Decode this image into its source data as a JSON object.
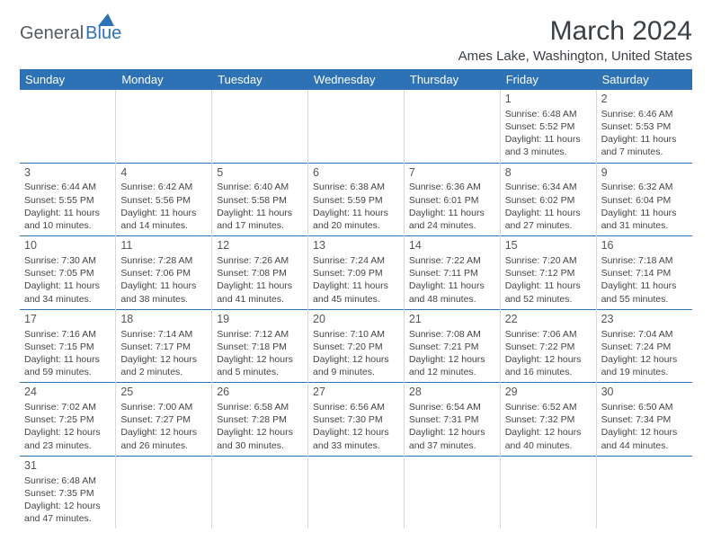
{
  "logo": {
    "part1": "General",
    "part2": "Blue"
  },
  "title": "March 2024",
  "subtitle": "Ames Lake, Washington, United States",
  "colors": {
    "header_bg": "#2d72b5",
    "header_text": "#ffffff",
    "row_divider": "#2d72b5",
    "cell_divider": "#d9d9d9",
    "body_text": "#444444",
    "title_text": "#3a3f44",
    "logo_gray": "#555a61",
    "logo_blue": "#2d72b5",
    "page_bg": "#ffffff"
  },
  "fonts": {
    "title_pt": 30,
    "subtitle_pt": 15,
    "header_pt": 13,
    "daynum_pt": 12.5,
    "body_pt": 10.5
  },
  "day_headers": [
    "Sunday",
    "Monday",
    "Tuesday",
    "Wednesday",
    "Thursday",
    "Friday",
    "Saturday"
  ],
  "weeks": [
    [
      null,
      null,
      null,
      null,
      null,
      {
        "n": "1",
        "sr": "Sunrise: 6:48 AM",
        "ss": "Sunset: 5:52 PM",
        "dl1": "Daylight: 11 hours",
        "dl2": "and 3 minutes."
      },
      {
        "n": "2",
        "sr": "Sunrise: 6:46 AM",
        "ss": "Sunset: 5:53 PM",
        "dl1": "Daylight: 11 hours",
        "dl2": "and 7 minutes."
      }
    ],
    [
      {
        "n": "3",
        "sr": "Sunrise: 6:44 AM",
        "ss": "Sunset: 5:55 PM",
        "dl1": "Daylight: 11 hours",
        "dl2": "and 10 minutes."
      },
      {
        "n": "4",
        "sr": "Sunrise: 6:42 AM",
        "ss": "Sunset: 5:56 PM",
        "dl1": "Daylight: 11 hours",
        "dl2": "and 14 minutes."
      },
      {
        "n": "5",
        "sr": "Sunrise: 6:40 AM",
        "ss": "Sunset: 5:58 PM",
        "dl1": "Daylight: 11 hours",
        "dl2": "and 17 minutes."
      },
      {
        "n": "6",
        "sr": "Sunrise: 6:38 AM",
        "ss": "Sunset: 5:59 PM",
        "dl1": "Daylight: 11 hours",
        "dl2": "and 20 minutes."
      },
      {
        "n": "7",
        "sr": "Sunrise: 6:36 AM",
        "ss": "Sunset: 6:01 PM",
        "dl1": "Daylight: 11 hours",
        "dl2": "and 24 minutes."
      },
      {
        "n": "8",
        "sr": "Sunrise: 6:34 AM",
        "ss": "Sunset: 6:02 PM",
        "dl1": "Daylight: 11 hours",
        "dl2": "and 27 minutes."
      },
      {
        "n": "9",
        "sr": "Sunrise: 6:32 AM",
        "ss": "Sunset: 6:04 PM",
        "dl1": "Daylight: 11 hours",
        "dl2": "and 31 minutes."
      }
    ],
    [
      {
        "n": "10",
        "sr": "Sunrise: 7:30 AM",
        "ss": "Sunset: 7:05 PM",
        "dl1": "Daylight: 11 hours",
        "dl2": "and 34 minutes."
      },
      {
        "n": "11",
        "sr": "Sunrise: 7:28 AM",
        "ss": "Sunset: 7:06 PM",
        "dl1": "Daylight: 11 hours",
        "dl2": "and 38 minutes."
      },
      {
        "n": "12",
        "sr": "Sunrise: 7:26 AM",
        "ss": "Sunset: 7:08 PM",
        "dl1": "Daylight: 11 hours",
        "dl2": "and 41 minutes."
      },
      {
        "n": "13",
        "sr": "Sunrise: 7:24 AM",
        "ss": "Sunset: 7:09 PM",
        "dl1": "Daylight: 11 hours",
        "dl2": "and 45 minutes."
      },
      {
        "n": "14",
        "sr": "Sunrise: 7:22 AM",
        "ss": "Sunset: 7:11 PM",
        "dl1": "Daylight: 11 hours",
        "dl2": "and 48 minutes."
      },
      {
        "n": "15",
        "sr": "Sunrise: 7:20 AM",
        "ss": "Sunset: 7:12 PM",
        "dl1": "Daylight: 11 hours",
        "dl2": "and 52 minutes."
      },
      {
        "n": "16",
        "sr": "Sunrise: 7:18 AM",
        "ss": "Sunset: 7:14 PM",
        "dl1": "Daylight: 11 hours",
        "dl2": "and 55 minutes."
      }
    ],
    [
      {
        "n": "17",
        "sr": "Sunrise: 7:16 AM",
        "ss": "Sunset: 7:15 PM",
        "dl1": "Daylight: 11 hours",
        "dl2": "and 59 minutes."
      },
      {
        "n": "18",
        "sr": "Sunrise: 7:14 AM",
        "ss": "Sunset: 7:17 PM",
        "dl1": "Daylight: 12 hours",
        "dl2": "and 2 minutes."
      },
      {
        "n": "19",
        "sr": "Sunrise: 7:12 AM",
        "ss": "Sunset: 7:18 PM",
        "dl1": "Daylight: 12 hours",
        "dl2": "and 5 minutes."
      },
      {
        "n": "20",
        "sr": "Sunrise: 7:10 AM",
        "ss": "Sunset: 7:20 PM",
        "dl1": "Daylight: 12 hours",
        "dl2": "and 9 minutes."
      },
      {
        "n": "21",
        "sr": "Sunrise: 7:08 AM",
        "ss": "Sunset: 7:21 PM",
        "dl1": "Daylight: 12 hours",
        "dl2": "and 12 minutes."
      },
      {
        "n": "22",
        "sr": "Sunrise: 7:06 AM",
        "ss": "Sunset: 7:22 PM",
        "dl1": "Daylight: 12 hours",
        "dl2": "and 16 minutes."
      },
      {
        "n": "23",
        "sr": "Sunrise: 7:04 AM",
        "ss": "Sunset: 7:24 PM",
        "dl1": "Daylight: 12 hours",
        "dl2": "and 19 minutes."
      }
    ],
    [
      {
        "n": "24",
        "sr": "Sunrise: 7:02 AM",
        "ss": "Sunset: 7:25 PM",
        "dl1": "Daylight: 12 hours",
        "dl2": "and 23 minutes."
      },
      {
        "n": "25",
        "sr": "Sunrise: 7:00 AM",
        "ss": "Sunset: 7:27 PM",
        "dl1": "Daylight: 12 hours",
        "dl2": "and 26 minutes."
      },
      {
        "n": "26",
        "sr": "Sunrise: 6:58 AM",
        "ss": "Sunset: 7:28 PM",
        "dl1": "Daylight: 12 hours",
        "dl2": "and 30 minutes."
      },
      {
        "n": "27",
        "sr": "Sunrise: 6:56 AM",
        "ss": "Sunset: 7:30 PM",
        "dl1": "Daylight: 12 hours",
        "dl2": "and 33 minutes."
      },
      {
        "n": "28",
        "sr": "Sunrise: 6:54 AM",
        "ss": "Sunset: 7:31 PM",
        "dl1": "Daylight: 12 hours",
        "dl2": "and 37 minutes."
      },
      {
        "n": "29",
        "sr": "Sunrise: 6:52 AM",
        "ss": "Sunset: 7:32 PM",
        "dl1": "Daylight: 12 hours",
        "dl2": "and 40 minutes."
      },
      {
        "n": "30",
        "sr": "Sunrise: 6:50 AM",
        "ss": "Sunset: 7:34 PM",
        "dl1": "Daylight: 12 hours",
        "dl2": "and 44 minutes."
      }
    ],
    [
      {
        "n": "31",
        "sr": "Sunrise: 6:48 AM",
        "ss": "Sunset: 7:35 PM",
        "dl1": "Daylight: 12 hours",
        "dl2": "and 47 minutes."
      },
      null,
      null,
      null,
      null,
      null,
      null
    ]
  ]
}
